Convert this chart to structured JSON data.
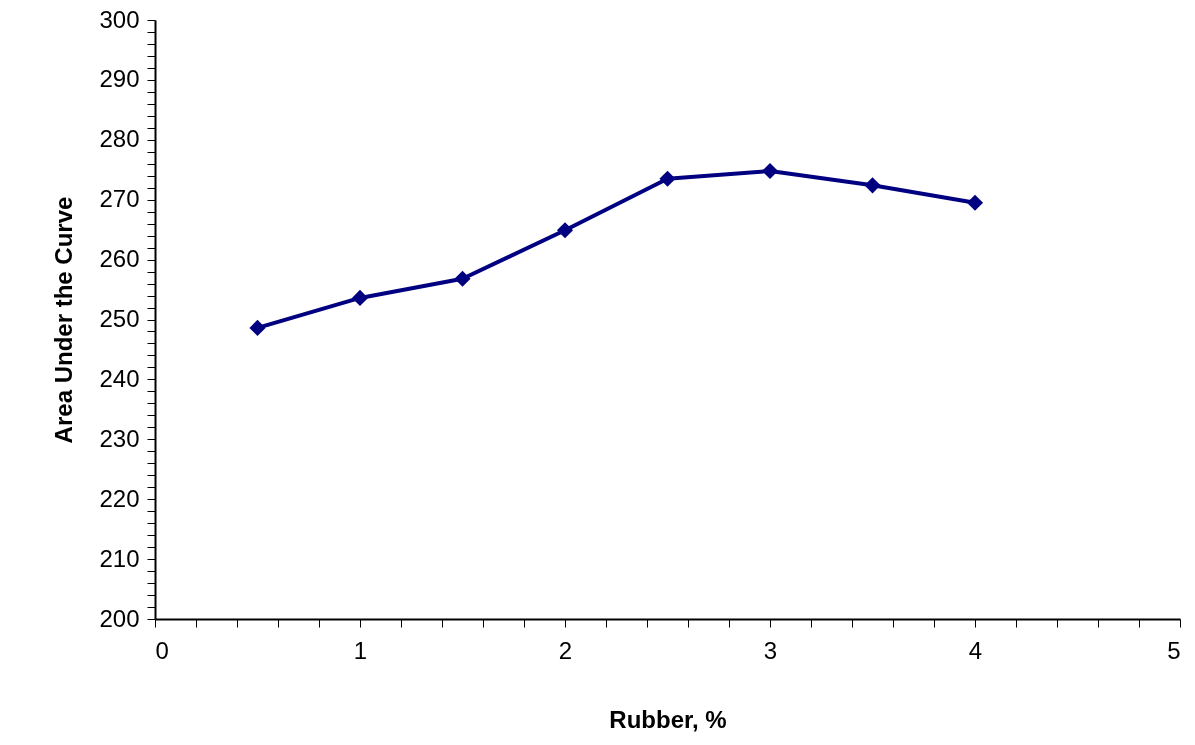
{
  "chart_data": {
    "type": "line",
    "xlabel": "Rubber, %",
    "ylabel": "Area Under the Curve",
    "x": [
      0.5,
      1,
      1.5,
      2,
      2.5,
      3,
      3.5,
      4
    ],
    "series": [
      {
        "color": "#000080",
        "values": [
          248.6,
          253.6,
          256.8,
          264.9,
          273.5,
          274.8,
          272.4,
          269.5
        ]
      }
    ],
    "xlim": [
      0,
      5
    ],
    "xticks": [
      0,
      {
        "value": 0.2,
        "label": null
      },
      {
        "value": 0.4,
        "label": null
      },
      {
        "value": 0.6,
        "label": null
      },
      {
        "value": 0.8,
        "label": null
      },
      1,
      {
        "value": 1.2,
        "label": null
      },
      {
        "value": 1.4,
        "label": null
      },
      {
        "value": 1.6,
        "label": null
      },
      {
        "value": 1.8,
        "label": null
      },
      2,
      {
        "value": 2.2,
        "label": null
      },
      {
        "value": 2.4,
        "label": null
      },
      {
        "value": 2.6,
        "label": null
      },
      {
        "value": 2.8,
        "label": null
      },
      3,
      {
        "value": 3.2,
        "label": null
      },
      {
        "value": 3.4,
        "label": null
      },
      {
        "value": 3.6,
        "label": null
      },
      {
        "value": 3.8,
        "label": null
      },
      4,
      {
        "value": 4.2,
        "label": null
      },
      {
        "value": 4.4,
        "label": null
      },
      {
        "value": 4.6,
        "label": null
      },
      {
        "value": 4.8,
        "label": null
      },
      5
    ],
    "ylim": [
      200,
      300
    ],
    "yticks": [
      200,
      {
        "value": 202,
        "label": null
      },
      {
        "value": 204,
        "label": null
      },
      {
        "value": 206,
        "label": null
      },
      {
        "value": 208,
        "label": null
      },
      210,
      {
        "value": 212,
        "label": null
      },
      {
        "value": 214,
        "label": null
      },
      {
        "value": 216,
        "label": null
      },
      {
        "value": 218,
        "label": null
      },
      220,
      {
        "value": 222,
        "label": null
      },
      {
        "value": 224,
        "label": null
      },
      {
        "value": 226,
        "label": null
      },
      {
        "value": 228,
        "label": null
      },
      230,
      {
        "value": 232,
        "label": null
      },
      {
        "value": 234,
        "label": null
      },
      {
        "value": 236,
        "label": null
      },
      {
        "value": 238,
        "label": null
      },
      240,
      {
        "value": 242,
        "label": null
      },
      {
        "value": 244,
        "label": null
      },
      {
        "value": 246,
        "label": null
      },
      {
        "value": 248,
        "label": null
      },
      250,
      {
        "value": 252,
        "label": null
      },
      {
        "value": 254,
        "label": null
      },
      {
        "value": 256,
        "label": null
      },
      {
        "value": 258,
        "label": null
      },
      260,
      {
        "value": 262,
        "label": null
      },
      {
        "value": 264,
        "label": null
      },
      {
        "value": 266,
        "label": null
      },
      {
        "value": 268,
        "label": null
      },
      270,
      {
        "value": 272,
        "label": null
      },
      {
        "value": 274,
        "label": null
      },
      {
        "value": 276,
        "label": null
      },
      {
        "value": 278,
        "label": null
      },
      280,
      {
        "value": 282,
        "label": null
      },
      {
        "value": 284,
        "label": null
      },
      {
        "value": 286,
        "label": null
      },
      {
        "value": 288,
        "label": null
      },
      290,
      {
        "value": 292,
        "label": null
      },
      {
        "value": 294,
        "label": null
      },
      {
        "value": 296,
        "label": null
      },
      {
        "value": 298,
        "label": null
      },
      300
    ],
    "marker": "diamond",
    "line_style": "solid",
    "grid": false
  }
}
